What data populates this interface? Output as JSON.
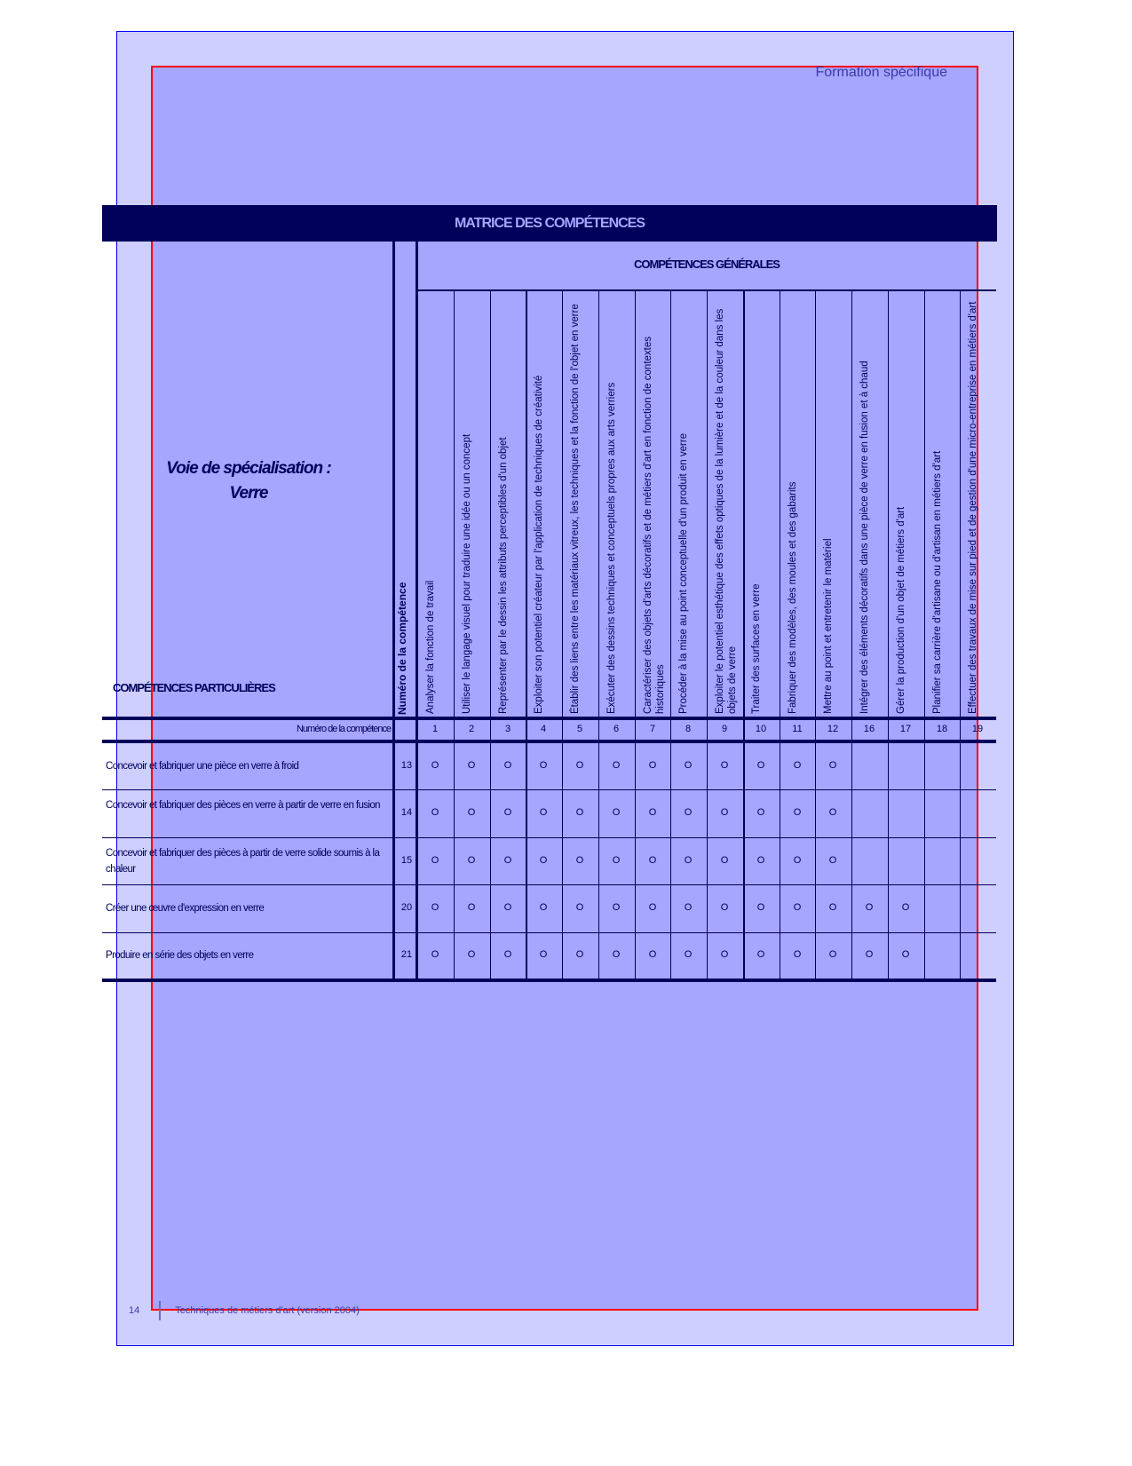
{
  "header": {
    "section": "Formation spécifique"
  },
  "matrix": {
    "title": "MATRICE DES COMPÉTENCES",
    "voie": "Voie de spécialisation :",
    "voie_value": "Verre",
    "general_label": "COMPÉTENCES GÉNÉRALES",
    "particular_label": "COMPÉTENCES PARTICULIÈRES",
    "number_header": "Numéro de la compétence",
    "number_row_label": "Numéro de la compétence",
    "mark_symbol": "O",
    "columns": [
      {
        "num": "1",
        "label": "Analyser la fonction de travail"
      },
      {
        "num": "2",
        "label": "Utiliser le langage visuel pour traduire une idée ou un concept"
      },
      {
        "num": "3",
        "label": "Représenter par le dessin les attributs perceptibles d'un objet"
      },
      {
        "num": "4",
        "label": "Exploiter son potentiel créateur par l'application de techniques de créativité"
      },
      {
        "num": "5",
        "label": "Établir des liens entre les matériaux vitreux, les techniques et la fonction de l'objet en verre"
      },
      {
        "num": "6",
        "label": "Exécuter des dessins techniques et conceptuels propres aux arts verriers"
      },
      {
        "num": "7",
        "label": "Caractériser des objets d'arts décoratifs et de métiers d'art en fonction de contextes historiques"
      },
      {
        "num": "8",
        "label": "Procéder à la mise au point conceptuelle d'un produit en verre"
      },
      {
        "num": "9",
        "label": "Exploiter le potentiel esthétique des effets optiques de la lumière et de la couleur dans les objets de verre"
      },
      {
        "num": "10",
        "label": "Traiter des surfaces en verre"
      },
      {
        "num": "11",
        "label": "Fabriquer des modèles, des moules et des gabarits"
      },
      {
        "num": "12",
        "label": "Mettre au point et entretenir le matériel"
      },
      {
        "num": "16",
        "label": "Intégrer des éléments décoratifs dans une pièce de verre en fusion et à chaud"
      },
      {
        "num": "17",
        "label": "Gérer la production d'un objet de métiers d'art"
      },
      {
        "num": "18",
        "label": "Planifier sa carrière d'artisane ou d'artisan en métiers d'art"
      },
      {
        "num": "19",
        "label": "Effectuer des travaux de mise sur pied et de gestion d'une micro-entreprise en métiers d'art"
      }
    ],
    "rows": [
      {
        "label": "Concevoir et fabriquer une pièce en verre à froid",
        "num": "13",
        "marks": [
          1,
          1,
          1,
          1,
          1,
          1,
          1,
          1,
          1,
          1,
          1,
          1,
          0,
          0,
          0,
          0
        ]
      },
      {
        "label": "Concevoir et fabriquer des pièces en verre à partir de verre en fusion",
        "num": "14",
        "marks": [
          1,
          1,
          1,
          1,
          1,
          1,
          1,
          1,
          1,
          1,
          1,
          1,
          0,
          0,
          0,
          0
        ]
      },
      {
        "label": "Concevoir et fabriquer des pièces à partir de verre solide soumis à la chaleur",
        "num": "15",
        "marks": [
          1,
          1,
          1,
          1,
          1,
          1,
          1,
          1,
          1,
          1,
          1,
          1,
          0,
          0,
          0,
          0
        ]
      },
      {
        "label": "Créer une œuvre d'expression en verre",
        "num": "20",
        "marks": [
          1,
          1,
          1,
          1,
          1,
          1,
          1,
          1,
          1,
          1,
          1,
          1,
          1,
          1,
          0,
          0
        ]
      },
      {
        "label": "Produire en série des objets en verre",
        "num": "21",
        "marks": [
          1,
          1,
          1,
          1,
          1,
          1,
          1,
          1,
          1,
          1,
          1,
          1,
          1,
          1,
          0,
          0
        ]
      }
    ]
  },
  "footer": {
    "page": "14",
    "title": "Techniques de métiers d'art (version 2004)"
  }
}
